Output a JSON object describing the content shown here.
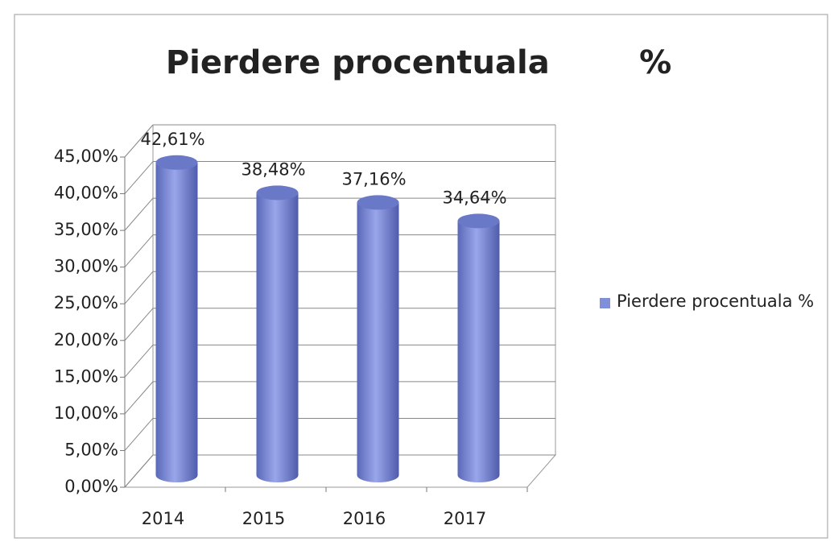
{
  "chart_data": {
    "type": "bar3d",
    "title": "Pierdere procentuala        %",
    "categories": [
      "2014",
      "2015",
      "2016",
      "2017"
    ],
    "series": [
      {
        "name": "Pierdere procentuala %",
        "color": "#7f8fd8",
        "values": [
          42.61,
          38.48,
          37.16,
          34.64
        ],
        "value_labels": [
          "42,61%",
          "38,48%",
          "37,16%",
          "34,64%"
        ]
      }
    ],
    "ylim": [
      0,
      45
    ],
    "yticks": [
      {
        "value": 0,
        "label": "0,00%"
      },
      {
        "value": 5,
        "label": "5,00%"
      },
      {
        "value": 10,
        "label": "10,00%"
      },
      {
        "value": 15,
        "label": "15,00%"
      },
      {
        "value": 20,
        "label": "20,00%"
      },
      {
        "value": 25,
        "label": "25,00%"
      },
      {
        "value": 30,
        "label": "30,00%"
      },
      {
        "value": 35,
        "label": "35,00%"
      },
      {
        "value": 40,
        "label": "40,00%"
      },
      {
        "value": 45,
        "label": "45,00%"
      }
    ],
    "grid": true,
    "legend": "right"
  }
}
